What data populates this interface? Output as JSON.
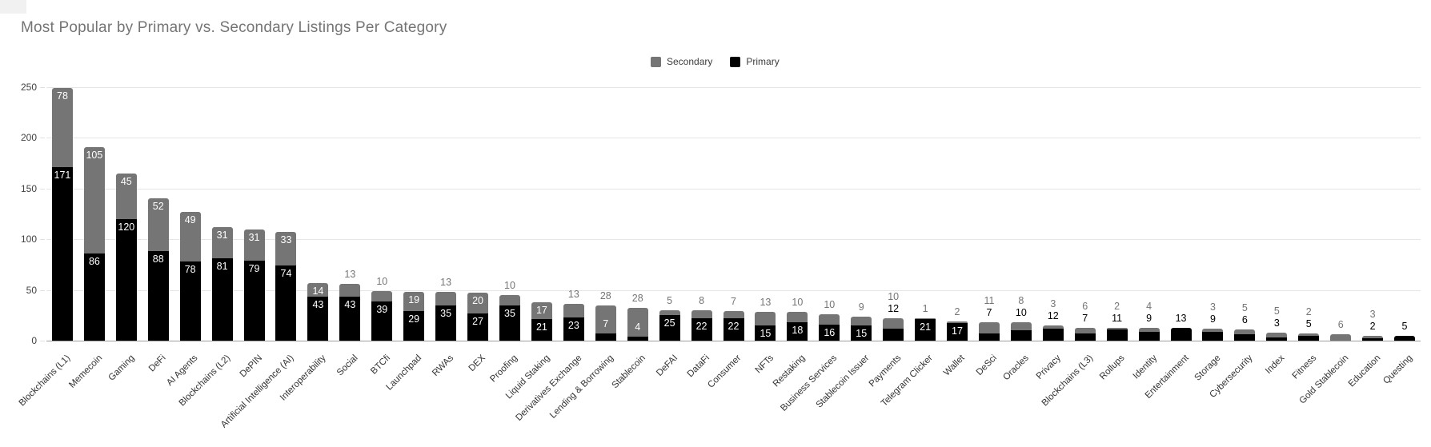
{
  "title": "Most Popular by Primary vs. Secondary Listings Per Category",
  "legend": {
    "secondary_label": "Secondary",
    "primary_label": "Primary"
  },
  "colors": {
    "primary": "#000000",
    "secondary": "#757575",
    "title_text": "#757575",
    "axis_text": "#424242",
    "category_text": "#333333",
    "gridline": "#e6e6e6",
    "baseline": "#9e9e9e",
    "label_inside": "#ffffff",
    "label_above_primary": "#000000",
    "label_above_secondary": "#757575"
  },
  "y_axis": {
    "ticks": [
      0,
      50,
      100,
      150,
      200,
      250
    ],
    "max": 250
  },
  "chart_data": {
    "type": "bar",
    "stacked": true,
    "title": "Most Popular by Primary vs. Secondary Listings Per Category",
    "xlabel": "",
    "ylabel": "",
    "ylim": [
      0,
      250
    ],
    "grid": true,
    "legend_position": "top",
    "legend_order": [
      "Secondary",
      "Primary"
    ],
    "categories": [
      "Blockchains (L1)",
      "Memecoin",
      "Gaming",
      "DeFi",
      "AI Agents",
      "Blockchains (L2)",
      "DePIN",
      "Artificial Intelligence (AI)",
      "Interoperability",
      "Social",
      "BTCfi",
      "Launchpad",
      "RWAs",
      "DEX",
      "Proofing",
      "Liquid Staking",
      "Derivatives Exchange",
      "Lending & Borrowing",
      "Stablecoin",
      "DeFAI",
      "DataFi",
      "Consumer",
      "NFTs",
      "Restaking",
      "Business Services",
      "Stablecoin Issuer",
      "Payments",
      "Telegram Clicker",
      "Wallet",
      "DeSci",
      "Oracles",
      "Privacy",
      "Blockchains (L3)",
      "Rollups",
      "Identity",
      "Entertainment",
      "Storage",
      "Cybersecurity",
      "Index",
      "Fitness",
      "Gold Stablecoin",
      "Education",
      "Questing"
    ],
    "series": [
      {
        "name": "Primary",
        "color": "#000000",
        "values": [
          171,
          86,
          120,
          88,
          78,
          81,
          79,
          74,
          43,
          43,
          39,
          29,
          35,
          27,
          35,
          21,
          23,
          7,
          4,
          25,
          22,
          22,
          15,
          18,
          16,
          15,
          12,
          21,
          17,
          7,
          10,
          12,
          7,
          11,
          9,
          13,
          9,
          6,
          3,
          5,
          0,
          2,
          5
        ]
      },
      {
        "name": "Secondary",
        "color": "#757575",
        "values": [
          78,
          105,
          45,
          52,
          49,
          31,
          31,
          33,
          14,
          13,
          10,
          19,
          13,
          20,
          10,
          17,
          13,
          28,
          28,
          5,
          8,
          7,
          13,
          10,
          10,
          9,
          10,
          1,
          2,
          11,
          8,
          3,
          6,
          2,
          4,
          0,
          3,
          5,
          5,
          2,
          6,
          3,
          0
        ]
      }
    ]
  }
}
